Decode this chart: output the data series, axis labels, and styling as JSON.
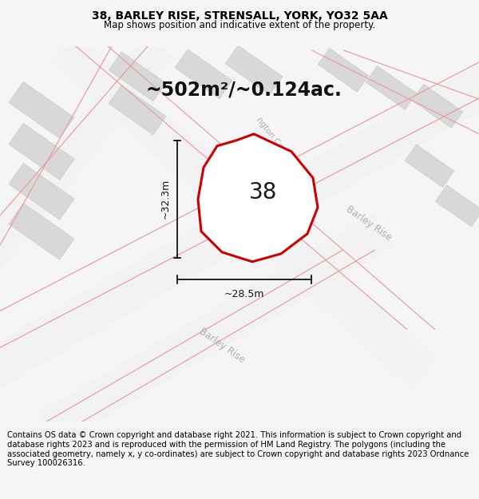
{
  "title": "38, BARLEY RISE, STRENSALL, YORK, YO32 5AA",
  "subtitle": "Map shows position and indicative extent of the property.",
  "area_label": "~502m²/~0.124ac.",
  "plot_number": "38",
  "dim_height": "~32.3m",
  "dim_width": "~28.5m",
  "footer": "Contains OS data © Crown copyright and database right 2021. This information is subject to Crown copyright and database rights 2023 and is reproduced with the permission of HM Land Registry. The polygons (including the associated geometry, namely x, y co-ordinates) are subject to Crown copyright and database rights 2023 Ordnance Survey 100026316.",
  "bg_color": "#f5f5f5",
  "map_bg": "#ffffff",
  "building_fill": "#d8d8d8",
  "building_stroke": "#cccccc",
  "pink_road_color": "#e8a0a0",
  "red_plot_color": "#cc0000",
  "street_label_color": "#b0b0b0",
  "title_fontsize": 10,
  "subtitle_fontsize": 8.5,
  "area_fontsize": 17,
  "plot_num_fontsize": 20,
  "dim_fontsize": 9,
  "footer_fontsize": 7.2
}
